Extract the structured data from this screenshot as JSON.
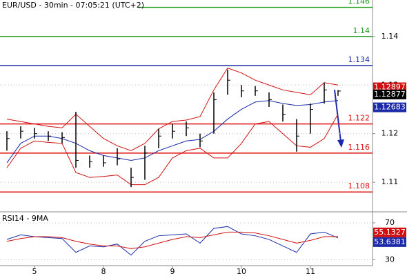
{
  "chart_data": [
    {
      "type": "ohlc",
      "title": "EUR/USD - 30min - 07:05:21 (UTC+2)",
      "categories": [
        null,
        null,
        "5",
        null,
        null,
        null,
        null,
        "8",
        null,
        null,
        null,
        null,
        "9",
        null,
        null,
        null,
        null,
        "10",
        null,
        null,
        null,
        null,
        "11",
        null,
        null
      ],
      "high": [
        1.1205,
        1.1215,
        1.1212,
        1.1205,
        1.1203,
        1.1245,
        1.1155,
        1.1155,
        1.117,
        1.113,
        1.1175,
        1.121,
        1.122,
        1.1225,
        1.12,
        1.1285,
        1.1332,
        1.13,
        1.1298,
        1.1285,
        1.126,
        1.123,
        1.1262,
        1.1305,
        1.12897
      ],
      "low": [
        1.1165,
        1.119,
        1.119,
        1.1185,
        1.118,
        1.113,
        1.113,
        1.1132,
        1.1135,
        1.109,
        1.1105,
        1.117,
        1.119,
        1.1195,
        1.1172,
        1.12,
        1.128,
        1.1275,
        1.1278,
        1.1255,
        1.1225,
        1.1163,
        1.12,
        1.1262,
        1.1278
      ],
      "close": [
        1.119,
        1.1205,
        1.12,
        1.1195,
        1.1192,
        1.1145,
        1.1142,
        1.114,
        1.1148,
        1.111,
        1.116,
        1.1195,
        1.1205,
        1.1212,
        1.1185,
        1.127,
        1.131,
        1.1288,
        1.1288,
        1.127,
        1.124,
        1.1195,
        1.125,
        1.129,
        1.12877
      ],
      "color": "#000000",
      "overlays": [
        {
          "color": "#d01010",
          "values": [
            1.123,
            1.1225,
            1.122,
            1.1215,
            1.1212,
            1.124,
            1.1215,
            1.119,
            1.1175,
            1.1165,
            1.118,
            1.121,
            1.1225,
            1.1228,
            1.1235,
            1.129,
            1.1335,
            1.1325,
            1.131,
            1.13,
            1.129,
            1.1285,
            1.128,
            1.1305,
            1.13
          ]
        },
        {
          "color": "#d01010",
          "values": [
            1.113,
            1.117,
            1.1185,
            1.1182,
            1.118,
            1.112,
            1.111,
            1.1112,
            1.1115,
            1.1095,
            1.1095,
            1.111,
            1.115,
            1.1165,
            1.117,
            1.115,
            1.115,
            1.118,
            1.122,
            1.1225,
            1.12,
            1.1175,
            1.1172,
            1.119,
            1.124
          ]
        },
        {
          "color": "#1a2aa8",
          "values": [
            1.114,
            1.118,
            1.1195,
            1.1195,
            1.119,
            1.118,
            1.1165,
            1.1155,
            1.115,
            1.1145,
            1.115,
            1.1165,
            1.1175,
            1.1185,
            1.1188,
            1.1205,
            1.123,
            1.125,
            1.1265,
            1.1268,
            1.1262,
            1.1258,
            1.126,
            1.1265,
            1.12683
          ]
        }
      ],
      "levels": [
        {
          "value": 1.146,
          "color": "#1a9a1a"
        },
        {
          "value": 1.14,
          "color": "#1a9a1a"
        },
        {
          "value": 1.134,
          "color": "#1a2aa8"
        },
        {
          "value": 1.122,
          "color": "#e01010"
        },
        {
          "value": 1.116,
          "color": "#e01010"
        },
        {
          "value": 1.108,
          "color": "#e01010"
        }
      ],
      "ylim": [
        1.1042,
        1.1475
      ],
      "yticks": [
        1.11,
        1.12,
        1.13,
        1.14
      ],
      "grid": true
    },
    {
      "type": "line",
      "title": "RSI14 - 9MA",
      "series": [
        {
          "color": "#1a2aa8",
          "values": [
            52,
            57,
            55,
            54,
            53,
            38,
            45,
            44,
            47,
            35,
            50,
            56,
            57,
            58,
            48,
            64,
            66,
            58,
            56,
            52,
            45,
            38,
            58,
            60,
            53.6381
          ]
        },
        {
          "color": "#d01010",
          "values": [
            50,
            53,
            55,
            55,
            54,
            50,
            47,
            45,
            45,
            42,
            44,
            48,
            52,
            55,
            54,
            57,
            60,
            60,
            59,
            56,
            52,
            48,
            51,
            55,
            55.1327
          ]
        }
      ],
      "ylim": [
        23.6,
        81.2
      ],
      "yticks": [
        30,
        70
      ],
      "grid": true
    }
  ]
}
